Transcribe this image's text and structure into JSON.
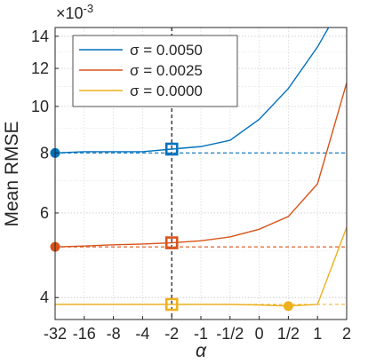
{
  "chart_data": {
    "type": "line",
    "title": "",
    "xlabel": "α",
    "ylabel": "Mean RMSE",
    "y_exponent_label": "×10",
    "y_exponent_power": "-3",
    "y_scale": "log",
    "ylim": [
      3.6,
      14.6
    ],
    "grid": true,
    "legend_position": "top-left",
    "categories": [
      "-32",
      "-16",
      "-8",
      "-4",
      "-2",
      "-1",
      "-1/2",
      "0",
      "1/2",
      "1",
      "2"
    ],
    "x_tick_labels": [
      "-32",
      "-16",
      "-8",
      "-4",
      "-2",
      "-1",
      "-1/2",
      "0",
      "1/2",
      "1",
      "2"
    ],
    "y_ticks": [
      4,
      6,
      8,
      10,
      12,
      14
    ],
    "y_tick_labels": [
      "4",
      "6",
      "8",
      "10",
      "12",
      "14"
    ],
    "marked_x": "-2",
    "series": [
      {
        "name": "σ = 0.0050",
        "color": "#0072BD",
        "values": [
          8.0,
          8.05,
          8.05,
          8.05,
          8.15,
          8.25,
          8.5,
          9.4,
          10.9,
          13.3,
          17.0
        ],
        "reference_level": 8.0,
        "selected_value": 8.15,
        "best_value": 8.0,
        "best_at": "-32"
      },
      {
        "name": "σ = 0.0025",
        "color": "#D95319",
        "values": [
          5.1,
          5.12,
          5.15,
          5.17,
          5.2,
          5.25,
          5.35,
          5.55,
          5.9,
          6.9,
          11.2
        ],
        "reference_level": 5.1,
        "selected_value": 5.2,
        "best_value": 5.1,
        "best_at": "-32"
      },
      {
        "name": "σ = 0.0000",
        "color": "#EDB120",
        "values": [
          3.87,
          3.87,
          3.87,
          3.87,
          3.87,
          3.87,
          3.87,
          3.86,
          3.84,
          3.87,
          5.6
        ],
        "reference_level": 3.87,
        "selected_value": 3.87,
        "best_value": 3.84,
        "best_at": "1/2"
      }
    ]
  }
}
